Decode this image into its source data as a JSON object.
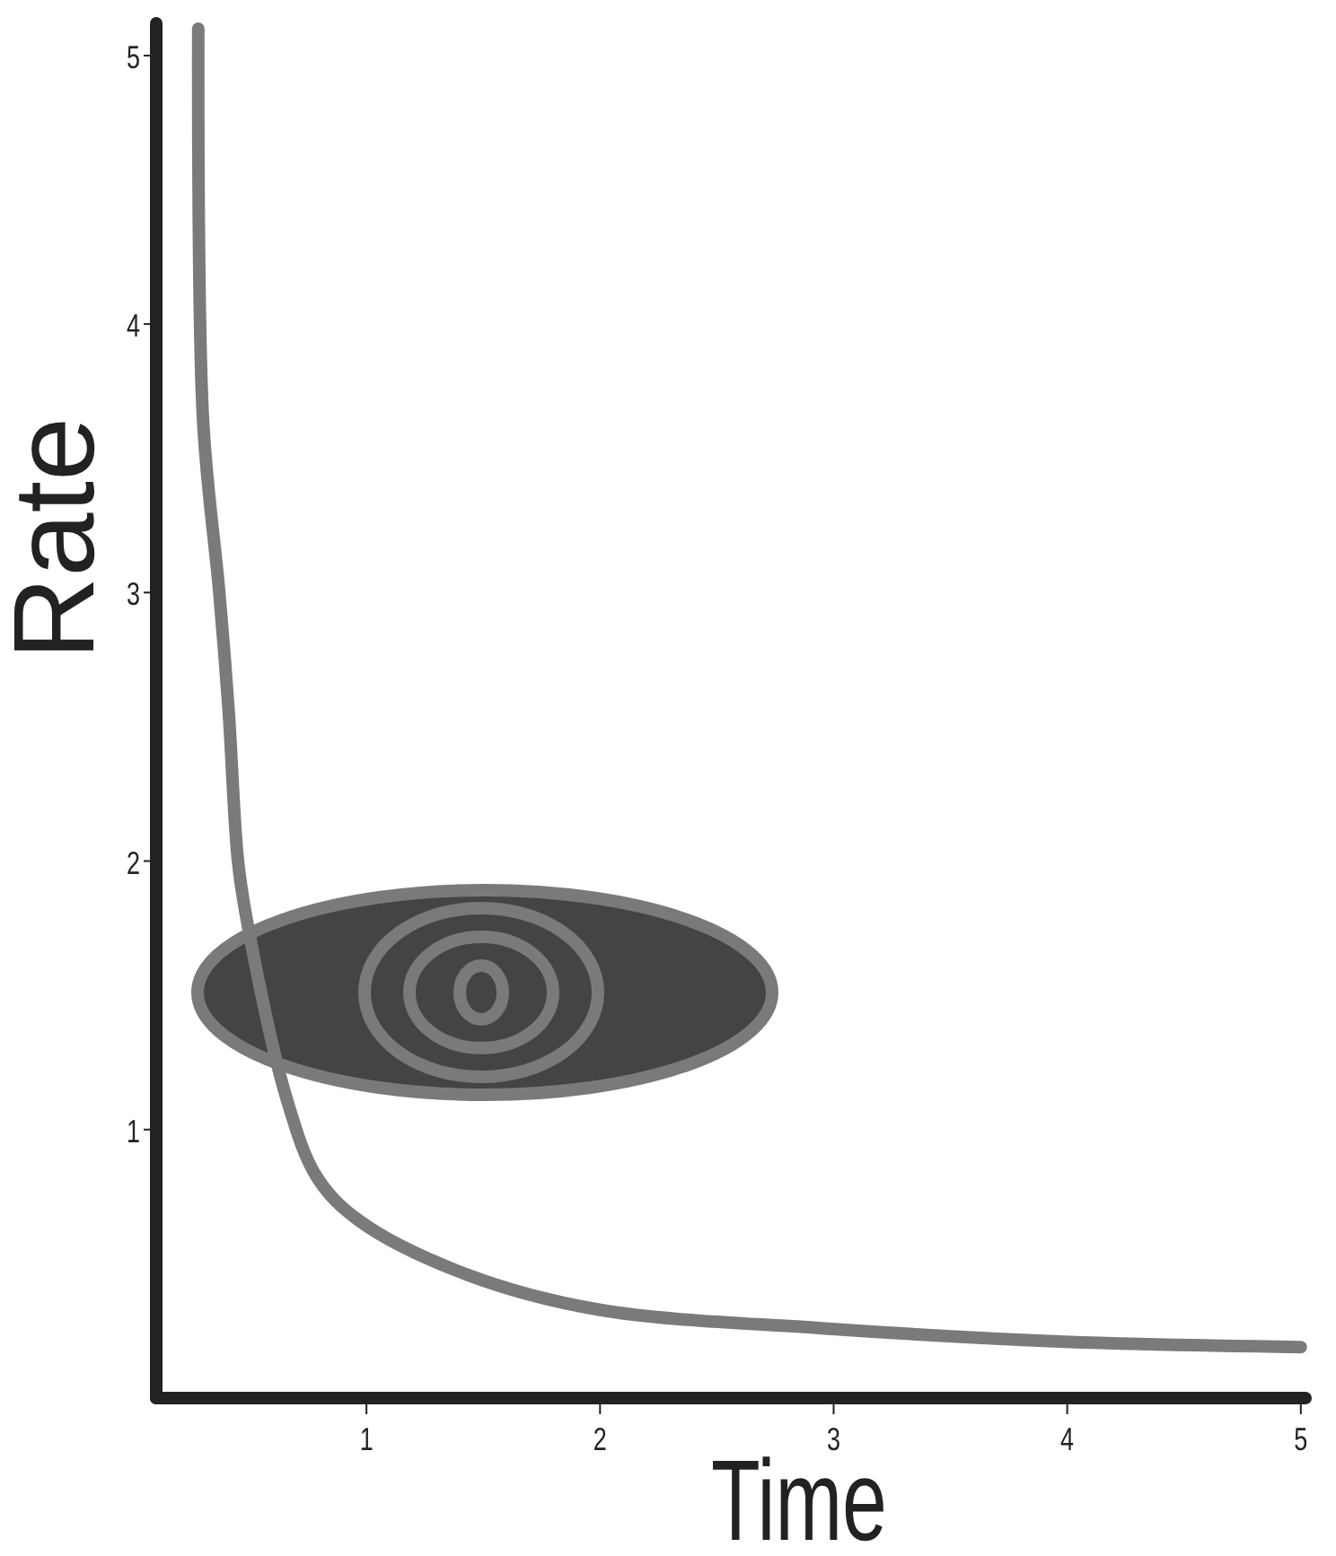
{
  "chart_data": {
    "type": "line",
    "xlabel": "Time",
    "ylabel": "Rate",
    "xlim": [
      0.1,
      5.02
    ],
    "ylim": [
      0,
      5.12
    ],
    "xticks": [
      1,
      2,
      3,
      4,
      5
    ],
    "yticks": [
      1,
      2,
      3,
      4,
      5
    ],
    "grid": false,
    "marker": "none",
    "line_style": "solid",
    "series": [
      {
        "color": "#7a7a7a",
        "x": [
          0.28,
          0.3,
          0.37,
          0.41,
          0.45,
          0.49,
          0.66,
          0.79,
          0.97,
          1.43,
          1.99,
          2.95,
          3.99,
          5
        ],
        "values": [
          5.1,
          3.65,
          3.0,
          2.56,
          2.0,
          1.77,
          1.11,
          0.82,
          0.66,
          0.46,
          0.33,
          0.26,
          0.21,
          0.19
        ]
      }
    ]
  }
}
